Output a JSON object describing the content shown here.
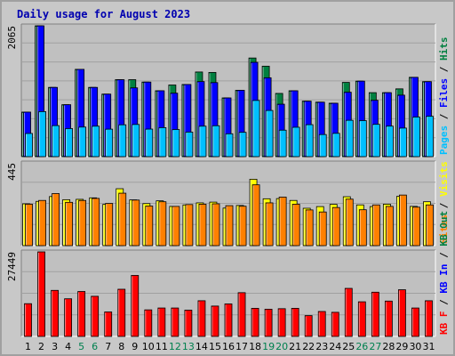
{
  "title": "Daily usage for August 2023",
  "colors": {
    "frame": "#c8c8c8",
    "plot_bg": "#c0c0c0",
    "pages": "#00c0ff",
    "files": "#0000ff",
    "hits": "#008040",
    "visits": "#ffff00",
    "sites": "#ff8000",
    "kbytes": "#ff0000",
    "title": "#0000b0"
  },
  "chart_data": [
    {
      "type": "bar",
      "panel": "hits-files-pages",
      "ylim": [
        0,
        2065
      ],
      "y_max_label": "2065",
      "grid": true,
      "legend": "right side, vertical",
      "categories": [
        "1",
        "2",
        "3",
        "4",
        "5",
        "6",
        "7",
        "8",
        "9",
        "10",
        "11",
        "12",
        "13",
        "14",
        "15",
        "16",
        "17",
        "18",
        "19",
        "20",
        "21",
        "22",
        "23",
        "24",
        "25",
        "26",
        "27",
        "28",
        "29",
        "30",
        "31"
      ],
      "weekend_days": [
        "5",
        "6",
        "12",
        "13",
        "19",
        "20",
        "26",
        "27"
      ],
      "series": [
        {
          "name": "Hits",
          "values": [
            703,
            2065,
            1093,
            820,
            1378,
            1093,
            987,
            1215,
            1215,
            1177,
            1040,
            1131,
            1139,
            1336,
            1329,
            927,
            1047,
            1557,
            1428,
            998,
            1040,
            876,
            860,
            843,
            1172,
            1192,
            1010,
            1010,
            1070,
            1252,
            1184
          ]
        },
        {
          "name": "Files",
          "values": [
            703,
            2065,
            1093,
            820,
            1378,
            1093,
            987,
            1215,
            1086,
            1177,
            1040,
            1002,
            1139,
            1185,
            1169,
            927,
            1047,
            1489,
            1245,
            828,
            1040,
            876,
            860,
            843,
            1017,
            1192,
            890,
            1010,
            971,
            1252,
            1184
          ]
        },
        {
          "name": "Pages",
          "values": [
            366,
            711,
            490,
            443,
            467,
            481,
            434,
            503,
            508,
            435,
            458,
            428,
            388,
            481,
            488,
            361,
            384,
            887,
            729,
            418,
            464,
            505,
            349,
            368,
            574,
            569,
            510,
            482,
            451,
            625,
            637
          ]
        }
      ]
    },
    {
      "type": "bar",
      "panel": "visits-sites",
      "ylim": [
        0,
        445
      ],
      "y_max_label": "445",
      "grid": true,
      "legend": "right side, vertical",
      "categories": [
        "1",
        "2",
        "3",
        "4",
        "5",
        "6",
        "7",
        "8",
        "9",
        "10",
        "11",
        "12",
        "13",
        "14",
        "15",
        "16",
        "17",
        "18",
        "19",
        "20",
        "21",
        "22",
        "23",
        "24",
        "25",
        "26",
        "27",
        "28",
        "29",
        "30",
        "31"
      ],
      "series": [
        {
          "name": "Visits",
          "values": [
            225,
            238,
            264,
            247,
            249,
            257,
            222,
            306,
            246,
            226,
            241,
            211,
            219,
            230,
            234,
            202,
            216,
            357,
            252,
            253,
            243,
            201,
            210,
            222,
            263,
            219,
            210,
            223,
            265,
            211,
            236
          ]
        },
        {
          "name": "Sites",
          "values": [
            223,
            243,
            280,
            233,
            243,
            254,
            227,
            282,
            245,
            213,
            236,
            211,
            221,
            223,
            225,
            215,
            212,
            327,
            230,
            261,
            223,
            192,
            181,
            205,
            250,
            193,
            219,
            211,
            272,
            207,
            219
          ]
        }
      ]
    },
    {
      "type": "bar",
      "panel": "kbytes",
      "ylim": [
        0,
        27449
      ],
      "y_max_label": "27449",
      "grid": true,
      "legend": "right side, vertical",
      "categories": [
        "1",
        "2",
        "3",
        "4",
        "5",
        "6",
        "7",
        "8",
        "9",
        "10",
        "11",
        "12",
        "13",
        "14",
        "15",
        "16",
        "17",
        "18",
        "19",
        "20",
        "21",
        "22",
        "23",
        "24",
        "25",
        "26",
        "27",
        "28",
        "29",
        "30",
        "31"
      ],
      "series": [
        {
          "name": "KBytes",
          "values": [
            10630,
            27449,
            14947,
            12224,
            14588,
            13027,
            7947,
            15318,
            19804,
            8627,
            9230,
            9230,
            8529,
            11587,
            9859,
            10547,
            14204,
            9125,
            8828,
            9007,
            9125,
            6758,
            8095,
            7828,
            15597,
            11242,
            14360,
            11476,
            15158,
            9230,
            11587
          ]
        }
      ]
    }
  ],
  "legend_top": [
    {
      "label": "Pages",
      "color": "#00c0ff"
    },
    {
      "label": " / ",
      "color": "#000000"
    },
    {
      "label": "Files",
      "color": "#0000ff"
    },
    {
      "label": " / ",
      "color": "#000000"
    },
    {
      "label": "Hits",
      "color": "#008040"
    }
  ],
  "legend_mid": [
    {
      "label": "Sites",
      "color": "#ff8000"
    },
    {
      "label": " / ",
      "color": "#000000"
    },
    {
      "label": "Visits",
      "color": "#ffff00"
    }
  ],
  "legend_bot": [
    {
      "label": "KB F",
      "color": "#ff0000"
    },
    {
      "label": " / ",
      "color": "#000000"
    },
    {
      "label": "KB In",
      "color": "#0000ff"
    },
    {
      "label": " / ",
      "color": "#000000"
    },
    {
      "label": "KB Out",
      "color": "#008040"
    }
  ]
}
